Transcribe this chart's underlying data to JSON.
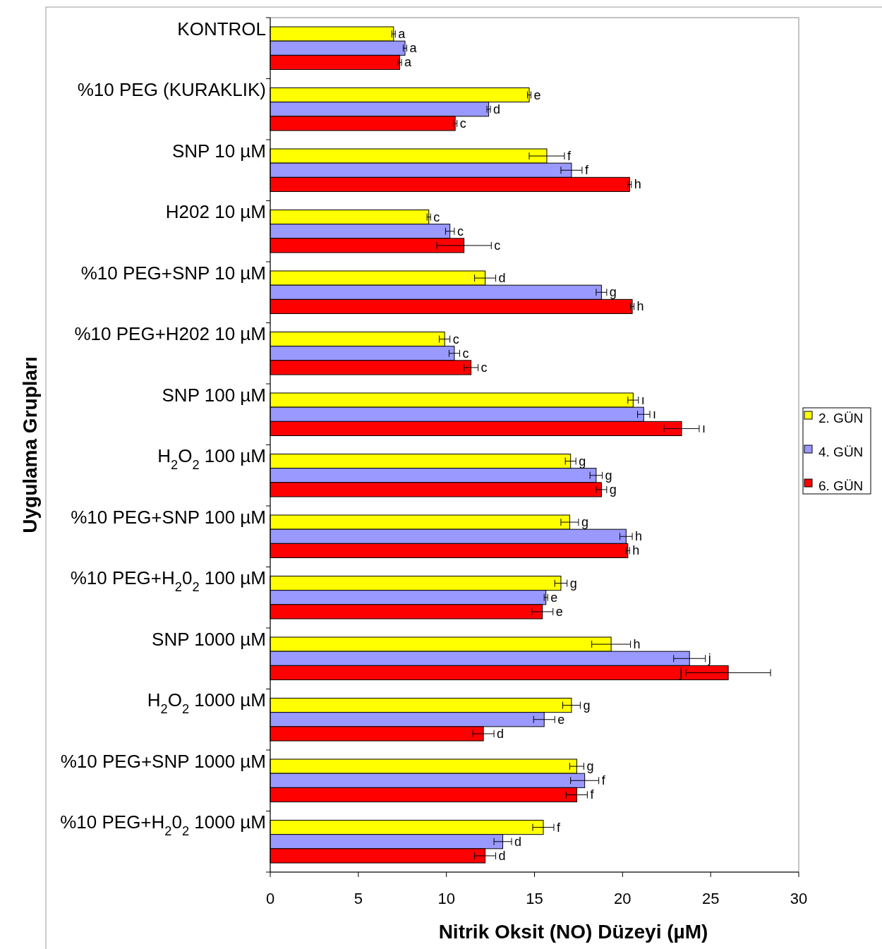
{
  "chart_data": {
    "type": "bar",
    "orientation": "horizontal",
    "ylabel": "Uygulama Grupları",
    "xlabel": "Nitrik Oksit (NO) Düzeyi (µM)",
    "categories": [
      "KONTROL",
      "%10 PEG (KURAKLIK)",
      "SNP 10 µM",
      "H202 10 µM",
      "%10 PEG+SNP 10 µM",
      "%10 PEG+H202 10 µM",
      "SNP 100 µM",
      "H$_{2}$O$_{2}$ 100 µM",
      "%10 PEG+SNP 100 µM",
      "%10 PEG+H$_{2}$0$_{2}$ 100 µM",
      "SNP 1000 µM",
      "H$_{2}$O$_{2}$ 1000 µM",
      "%10 PEG+SNP 1000 µM",
      "%10 PEG+H$_{2}$0$_{2}$ 1000 µM"
    ],
    "series": [
      {
        "name": "2. GÜN",
        "color": "#ffff00",
        "values": [
          7.0,
          14.7,
          15.7,
          9.0,
          12.2,
          9.9,
          20.6,
          17.05,
          17.0,
          16.5,
          19.35,
          17.1,
          17.4,
          15.5
        ],
        "errors": [
          0.1,
          0.1,
          1.0,
          0.1,
          0.6,
          0.3,
          0.3,
          0.3,
          0.5,
          0.35,
          1.1,
          0.5,
          0.4,
          0.6
        ],
        "value_labels": [
          "a",
          "e",
          "f",
          "c",
          "d",
          "c",
          "ı",
          "g",
          "g",
          "g",
          "h",
          "g",
          "g",
          "f"
        ]
      },
      {
        "name": "4. GÜN",
        "color": "#9999ff",
        "values": [
          7.65,
          12.4,
          17.1,
          10.2,
          18.8,
          10.45,
          21.2,
          18.5,
          20.2,
          15.65,
          23.8,
          15.55,
          17.85,
          13.2
        ],
        "errors": [
          0.1,
          0.1,
          0.6,
          0.25,
          0.3,
          0.3,
          0.35,
          0.35,
          0.35,
          0.1,
          0.9,
          0.6,
          0.8,
          0.5
        ],
        "value_labels": [
          "a",
          "d",
          "f",
          "c",
          "g",
          "c",
          "ı",
          "g",
          "h",
          "e",
          "j",
          "e",
          "f",
          "d"
        ]
      },
      {
        "name": "6. GÜN",
        "color": "#ff0000",
        "values": [
          7.35,
          10.5,
          20.4,
          11.0,
          20.55,
          11.4,
          23.35,
          18.8,
          20.3,
          15.45,
          26.0,
          12.1,
          17.4,
          12.2
        ],
        "errors": [
          0.1,
          0.1,
          0.1,
          1.55,
          0.1,
          0.4,
          1.0,
          0.3,
          0.1,
          0.6,
          2.4,
          0.6,
          0.6,
          0.6
        ],
        "value_labels": [
          "a",
          "c",
          "h",
          "c",
          "h",
          "c",
          "ı",
          "g",
          "h",
          "e",
          "j",
          "d",
          "f",
          "d"
        ]
      }
    ],
    "xlim": [
      0,
      30
    ],
    "xticks": [
      0,
      5,
      10,
      15,
      20,
      25,
      30
    ],
    "legend": "right",
    "grid": false
  }
}
